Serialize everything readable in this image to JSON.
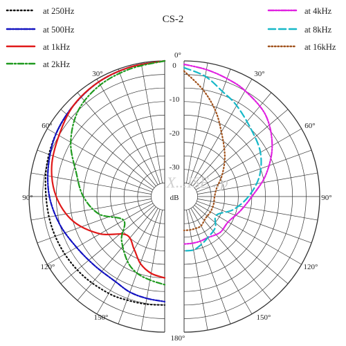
{
  "chart_data": {
    "type": "polar",
    "title": "CS-2",
    "center_label": "dB",
    "watermark": "X...ISE...p",
    "angle_ticks": [
      "0°",
      "30°",
      "60°",
      "90°",
      "120°",
      "150°",
      "180°"
    ],
    "radial_ticks": [
      "0",
      "-10",
      "-20",
      "-30"
    ],
    "rlim": [
      -40,
      0
    ],
    "series": [
      {
        "name": "at 250Hz",
        "side": "left",
        "color": "#111111",
        "dash": "1.5,3.5",
        "angles": [
          0,
          15,
          30,
          45,
          60,
          75,
          90,
          105,
          120,
          135,
          150,
          160,
          170,
          180
        ],
        "levels": [
          0,
          -0.5,
          -1,
          -2,
          -3,
          -4,
          -5,
          -5.5,
          -6,
          -6.5,
          -7,
          -7.5,
          -7.8,
          -8
        ]
      },
      {
        "name": "at 500Hz",
        "side": "left",
        "color": "#1010c0",
        "dash": "6,2,2,2",
        "angles": [
          0,
          15,
          30,
          45,
          60,
          75,
          90,
          105,
          120,
          135,
          150,
          160,
          170,
          180
        ],
        "levels": [
          0,
          -0.5,
          -1,
          -2,
          -3,
          -4.5,
          -6,
          -8,
          -10,
          -11,
          -11,
          -10,
          -9.5,
          -9
        ]
      },
      {
        "name": "at 1kHz",
        "side": "left",
        "color": "#e01818",
        "dash": "",
        "angles": [
          0,
          15,
          30,
          45,
          60,
          75,
          90,
          105,
          120,
          135,
          150,
          160,
          170,
          180
        ],
        "levels": [
          0,
          -0.5,
          -1,
          -2,
          -4,
          -5.5,
          -8,
          -12,
          -18,
          -24,
          -22,
          -19,
          -17,
          -16
        ]
      },
      {
        "name": "at 2kHz",
        "side": "left",
        "color": "#1f9a1f",
        "dash": "8,3,2,3",
        "angles": [
          0,
          15,
          30,
          45,
          60,
          75,
          90,
          105,
          120,
          135,
          150,
          160,
          170,
          180
        ],
        "levels": [
          0,
          -1,
          -2,
          -4,
          -8,
          -13,
          -16,
          -20,
          -26,
          -22,
          -18,
          -16,
          -15,
          -14
        ]
      },
      {
        "name": "at 4kHz",
        "side": "right",
        "color": "#e020e0",
        "dash": "8,2,2,2,2,2",
        "angles": [
          0,
          10,
          20,
          30,
          45,
          60,
          75,
          90,
          105,
          120,
          135,
          150,
          160,
          170,
          180
        ],
        "levels": [
          -1,
          -2,
          -3,
          -4,
          -6,
          -10,
          -15,
          -20,
          -23,
          -25,
          -25,
          -26,
          -26,
          -26,
          -26
        ]
      },
      {
        "name": "at 8kHz",
        "side": "right",
        "color": "#16b8c8",
        "dash": "10,5",
        "angles": [
          0,
          10,
          20,
          30,
          45,
          60,
          75,
          90,
          105,
          120,
          135,
          150,
          160,
          170,
          180
        ],
        "levels": [
          -2,
          -4,
          -7,
          -9,
          -12,
          -14,
          -17,
          -21,
          -25,
          -29,
          -27,
          -26,
          -25,
          -24,
          -24
        ]
      },
      {
        "name": "at 16kHz",
        "side": "right",
        "color": "#a0521c",
        "dash": "1.5,3",
        "angles": [
          0,
          10,
          20,
          30,
          45,
          60,
          75,
          90,
          105,
          120,
          135,
          150,
          160,
          170,
          180
        ],
        "levels": [
          -3,
          -8,
          -13,
          -18,
          -23,
          -27,
          -30,
          -31,
          -31,
          -31,
          -31,
          -30,
          -30,
          -30,
          -30
        ]
      }
    ]
  }
}
